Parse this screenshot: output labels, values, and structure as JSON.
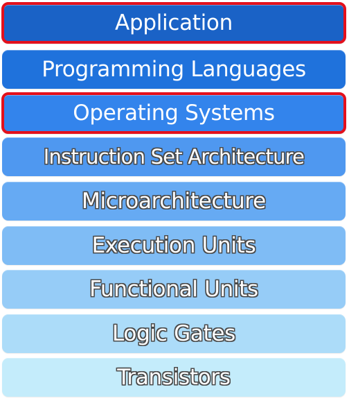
{
  "layers": [
    {
      "label": "Application",
      "fill": "#1a62c6",
      "highlighted": true,
      "outlined": false
    },
    {
      "label": "Programming Languages",
      "fill": "#1f72dc",
      "highlighted": false,
      "outlined": false
    },
    {
      "label": "Operating Systems",
      "fill": "#3384ec",
      "highlighted": true,
      "outlined": false
    },
    {
      "label": "Instruction Set Architecture",
      "fill": "#4f98f0",
      "highlighted": false,
      "outlined": true
    },
    {
      "label": "Microarchitecture",
      "fill": "#66aaf3",
      "highlighted": false,
      "outlined": true
    },
    {
      "label": "Execution Units",
      "fill": "#7fbcf5",
      "highlighted": false,
      "outlined": true
    },
    {
      "label": "Functional Units",
      "fill": "#96ccf7",
      "highlighted": false,
      "outlined": true
    },
    {
      "label": "Logic Gates",
      "fill": "#acdcf9",
      "highlighted": false,
      "outlined": true
    },
    {
      "label": "Transistors",
      "fill": "#c4ecfb",
      "highlighted": false,
      "outlined": true
    }
  ],
  "colors": {
    "highlight_border": "#e3101c",
    "text": "#ffffff",
    "text_outline": "#4a4a4a"
  }
}
